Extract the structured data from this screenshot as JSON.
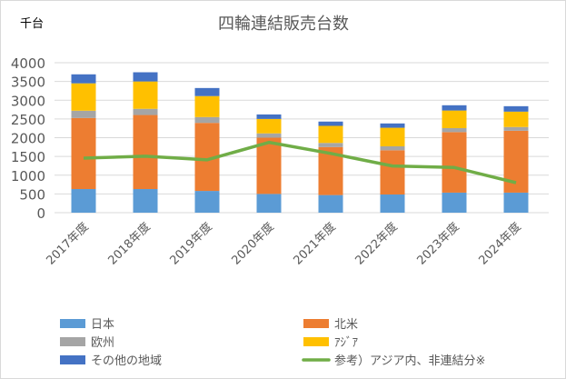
{
  "chart_data": {
    "type": "bar",
    "stacked": true,
    "title": "四輪連結販売台数",
    "unit_label": "千台",
    "categories": [
      "2017年度",
      "2018年度",
      "2019年度",
      "2020年度",
      "2021年度",
      "2022年度",
      "2023年度",
      "2024年度"
    ],
    "ylim": [
      0,
      4000
    ],
    "yticks": [
      0,
      500,
      1000,
      1500,
      2000,
      2500,
      3000,
      3500,
      4000
    ],
    "grid": true,
    "legend_position": "bottom",
    "series": [
      {
        "name": "日本",
        "type": "bar",
        "color": "#5b9bd5",
        "values": [
          630,
          630,
          580,
          500,
          470,
          485,
          535,
          535
        ]
      },
      {
        "name": "北米",
        "type": "bar",
        "color": "#ed7d31",
        "values": [
          1895,
          1975,
          1815,
          1500,
          1280,
          1180,
          1615,
          1650
        ]
      },
      {
        "name": "欧州",
        "type": "bar",
        "color": "#a5a5a5",
        "values": [
          195,
          165,
          155,
          115,
          110,
          105,
          105,
          100
        ]
      },
      {
        "name": "ｱｼﾞｱ",
        "type": "bar",
        "color": "#ffc000",
        "values": [
          730,
          730,
          560,
          385,
          455,
          495,
          470,
          410
        ]
      },
      {
        "name": "その他の地域",
        "type": "bar",
        "color": "#4472c4",
        "values": [
          240,
          245,
          215,
          120,
          115,
          115,
          140,
          145
        ]
      },
      {
        "name": "参考）アジア内、非連結分※",
        "type": "line",
        "color": "#70ad47",
        "values": [
          1455,
          1505,
          1410,
          1875,
          1580,
          1245,
          1205,
          800
        ]
      }
    ]
  }
}
